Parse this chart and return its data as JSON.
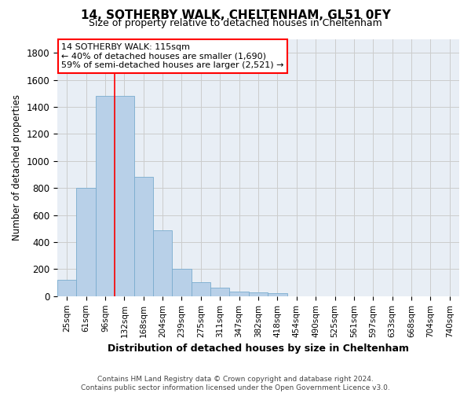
{
  "title1": "14, SOTHERBY WALK, CHELTENHAM, GL51 0FY",
  "title2": "Size of property relative to detached houses in Cheltenham",
  "xlabel": "Distribution of detached houses by size in Cheltenham",
  "ylabel": "Number of detached properties",
  "footer1": "Contains HM Land Registry data © Crown copyright and database right 2024.",
  "footer2": "Contains public sector information licensed under the Open Government Licence v3.0.",
  "categories": [
    "25sqm",
    "61sqm",
    "96sqm",
    "132sqm",
    "168sqm",
    "204sqm",
    "239sqm",
    "275sqm",
    "311sqm",
    "347sqm",
    "382sqm",
    "418sqm",
    "454sqm",
    "490sqm",
    "525sqm",
    "561sqm",
    "597sqm",
    "633sqm",
    "668sqm",
    "704sqm",
    "740sqm"
  ],
  "values": [
    120,
    800,
    1480,
    1480,
    880,
    490,
    205,
    105,
    65,
    35,
    30,
    25,
    0,
    0,
    0,
    0,
    0,
    0,
    0,
    0,
    0
  ],
  "bar_color": "#b8d0e8",
  "bar_edge_color": "#7aacce",
  "annotation_text1": "14 SOTHERBY WALK: 115sqm",
  "annotation_text2": "← 40% of detached houses are smaller (1,690)",
  "annotation_text3": "59% of semi-detached houses are larger (2,521) →",
  "ylim": [
    0,
    1900
  ],
  "yticks": [
    0,
    200,
    400,
    600,
    800,
    1000,
    1200,
    1400,
    1600,
    1800
  ],
  "grid_color": "#cccccc",
  "bg_color": "#e8eef5",
  "font_family": "DejaVu Sans"
}
